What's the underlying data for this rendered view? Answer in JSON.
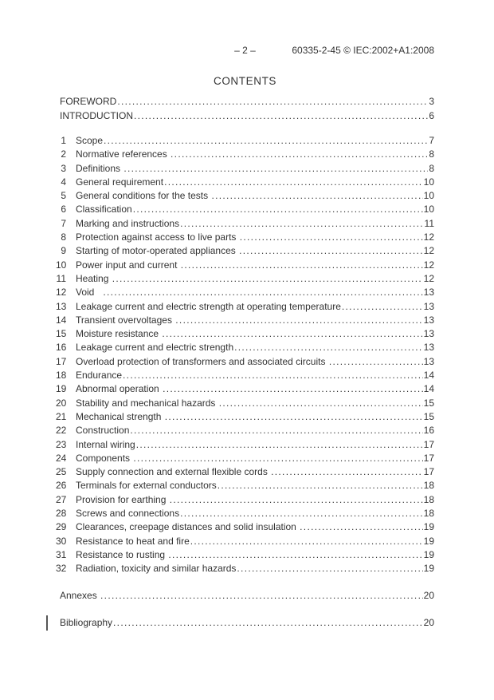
{
  "header": {
    "page_marker": "– 2 –",
    "doc_ref": "60335-2-45 © IEC:2002+A1:2008"
  },
  "title": "CONTENTS",
  "front_entries": [
    {
      "label": "FOREWORD",
      "page": "3"
    },
    {
      "label": "INTRODUCTION",
      "page": "6"
    }
  ],
  "sections": [
    {
      "num": "1",
      "title": "Scope",
      "page": "7"
    },
    {
      "num": "2",
      "title": "Normative references ",
      "page": "8"
    },
    {
      "num": "3",
      "title": "Definitions ",
      "page": "8"
    },
    {
      "num": "4",
      "title": "General requirement",
      "page": "10"
    },
    {
      "num": "5",
      "title": "General conditions for the tests ",
      "page": "10"
    },
    {
      "num": "6",
      "title": "Classification",
      "page": "10"
    },
    {
      "num": "7",
      "title": "Marking and instructions",
      "page": "11"
    },
    {
      "num": "8",
      "title": "Protection against access to live parts ",
      "page": "12"
    },
    {
      "num": "9",
      "title": "Starting of motor-operated appliances ",
      "page": "12"
    },
    {
      "num": "10",
      "title": "Power input and current ",
      "page": "12"
    },
    {
      "num": "11",
      "title": "Heating ",
      "page": "12"
    },
    {
      "num": "12",
      "title": "Void   ",
      "page": "13"
    },
    {
      "num": "13",
      "title": "Leakage current and electric strength at operating temperature",
      "page": "13"
    },
    {
      "num": "14",
      "title": "Transient overvoltages ",
      "page": "13"
    },
    {
      "num": "15",
      "title": "Moisture resistance ",
      "page": "13"
    },
    {
      "num": "16",
      "title": "Leakage current and electric strength",
      "page": "13"
    },
    {
      "num": "17",
      "title": "Overload protection of transformers and associated circuits ",
      "page": "13"
    },
    {
      "num": "18",
      "title": "Endurance",
      "page": "14"
    },
    {
      "num": "19",
      "title": "Abnormal operation ",
      "page": "14"
    },
    {
      "num": "20",
      "title": "Stability and mechanical hazards ",
      "page": "15"
    },
    {
      "num": "21",
      "title": "Mechanical strength ",
      "page": "15"
    },
    {
      "num": "22",
      "title": "Construction",
      "page": "16"
    },
    {
      "num": "23",
      "title": "Internal wiring",
      "page": "17"
    },
    {
      "num": "24",
      "title": "Components ",
      "page": "17"
    },
    {
      "num": "25",
      "title": "Supply connection and external flexible cords ",
      "page": "17"
    },
    {
      "num": "26",
      "title": "Terminals for external conductors",
      "page": "18"
    },
    {
      "num": "27",
      "title": "Provision for earthing ",
      "page": "18"
    },
    {
      "num": "28",
      "title": "Screws and connections",
      "page": "18"
    },
    {
      "num": "29",
      "title": "Clearances, creepage distances and solid insulation ",
      "page": "19"
    },
    {
      "num": "30",
      "title": "Resistance to heat and fire",
      "page": "19"
    },
    {
      "num": "31",
      "title": "Resistance to rusting ",
      "page": "19"
    },
    {
      "num": "32",
      "title": "Radiation, toxicity and similar hazards",
      "page": "19"
    }
  ],
  "back_entries": [
    {
      "label": "Annexes ",
      "page": "20",
      "change_bar": false
    },
    {
      "label": "Bibliography",
      "page": "20",
      "change_bar": true
    }
  ]
}
